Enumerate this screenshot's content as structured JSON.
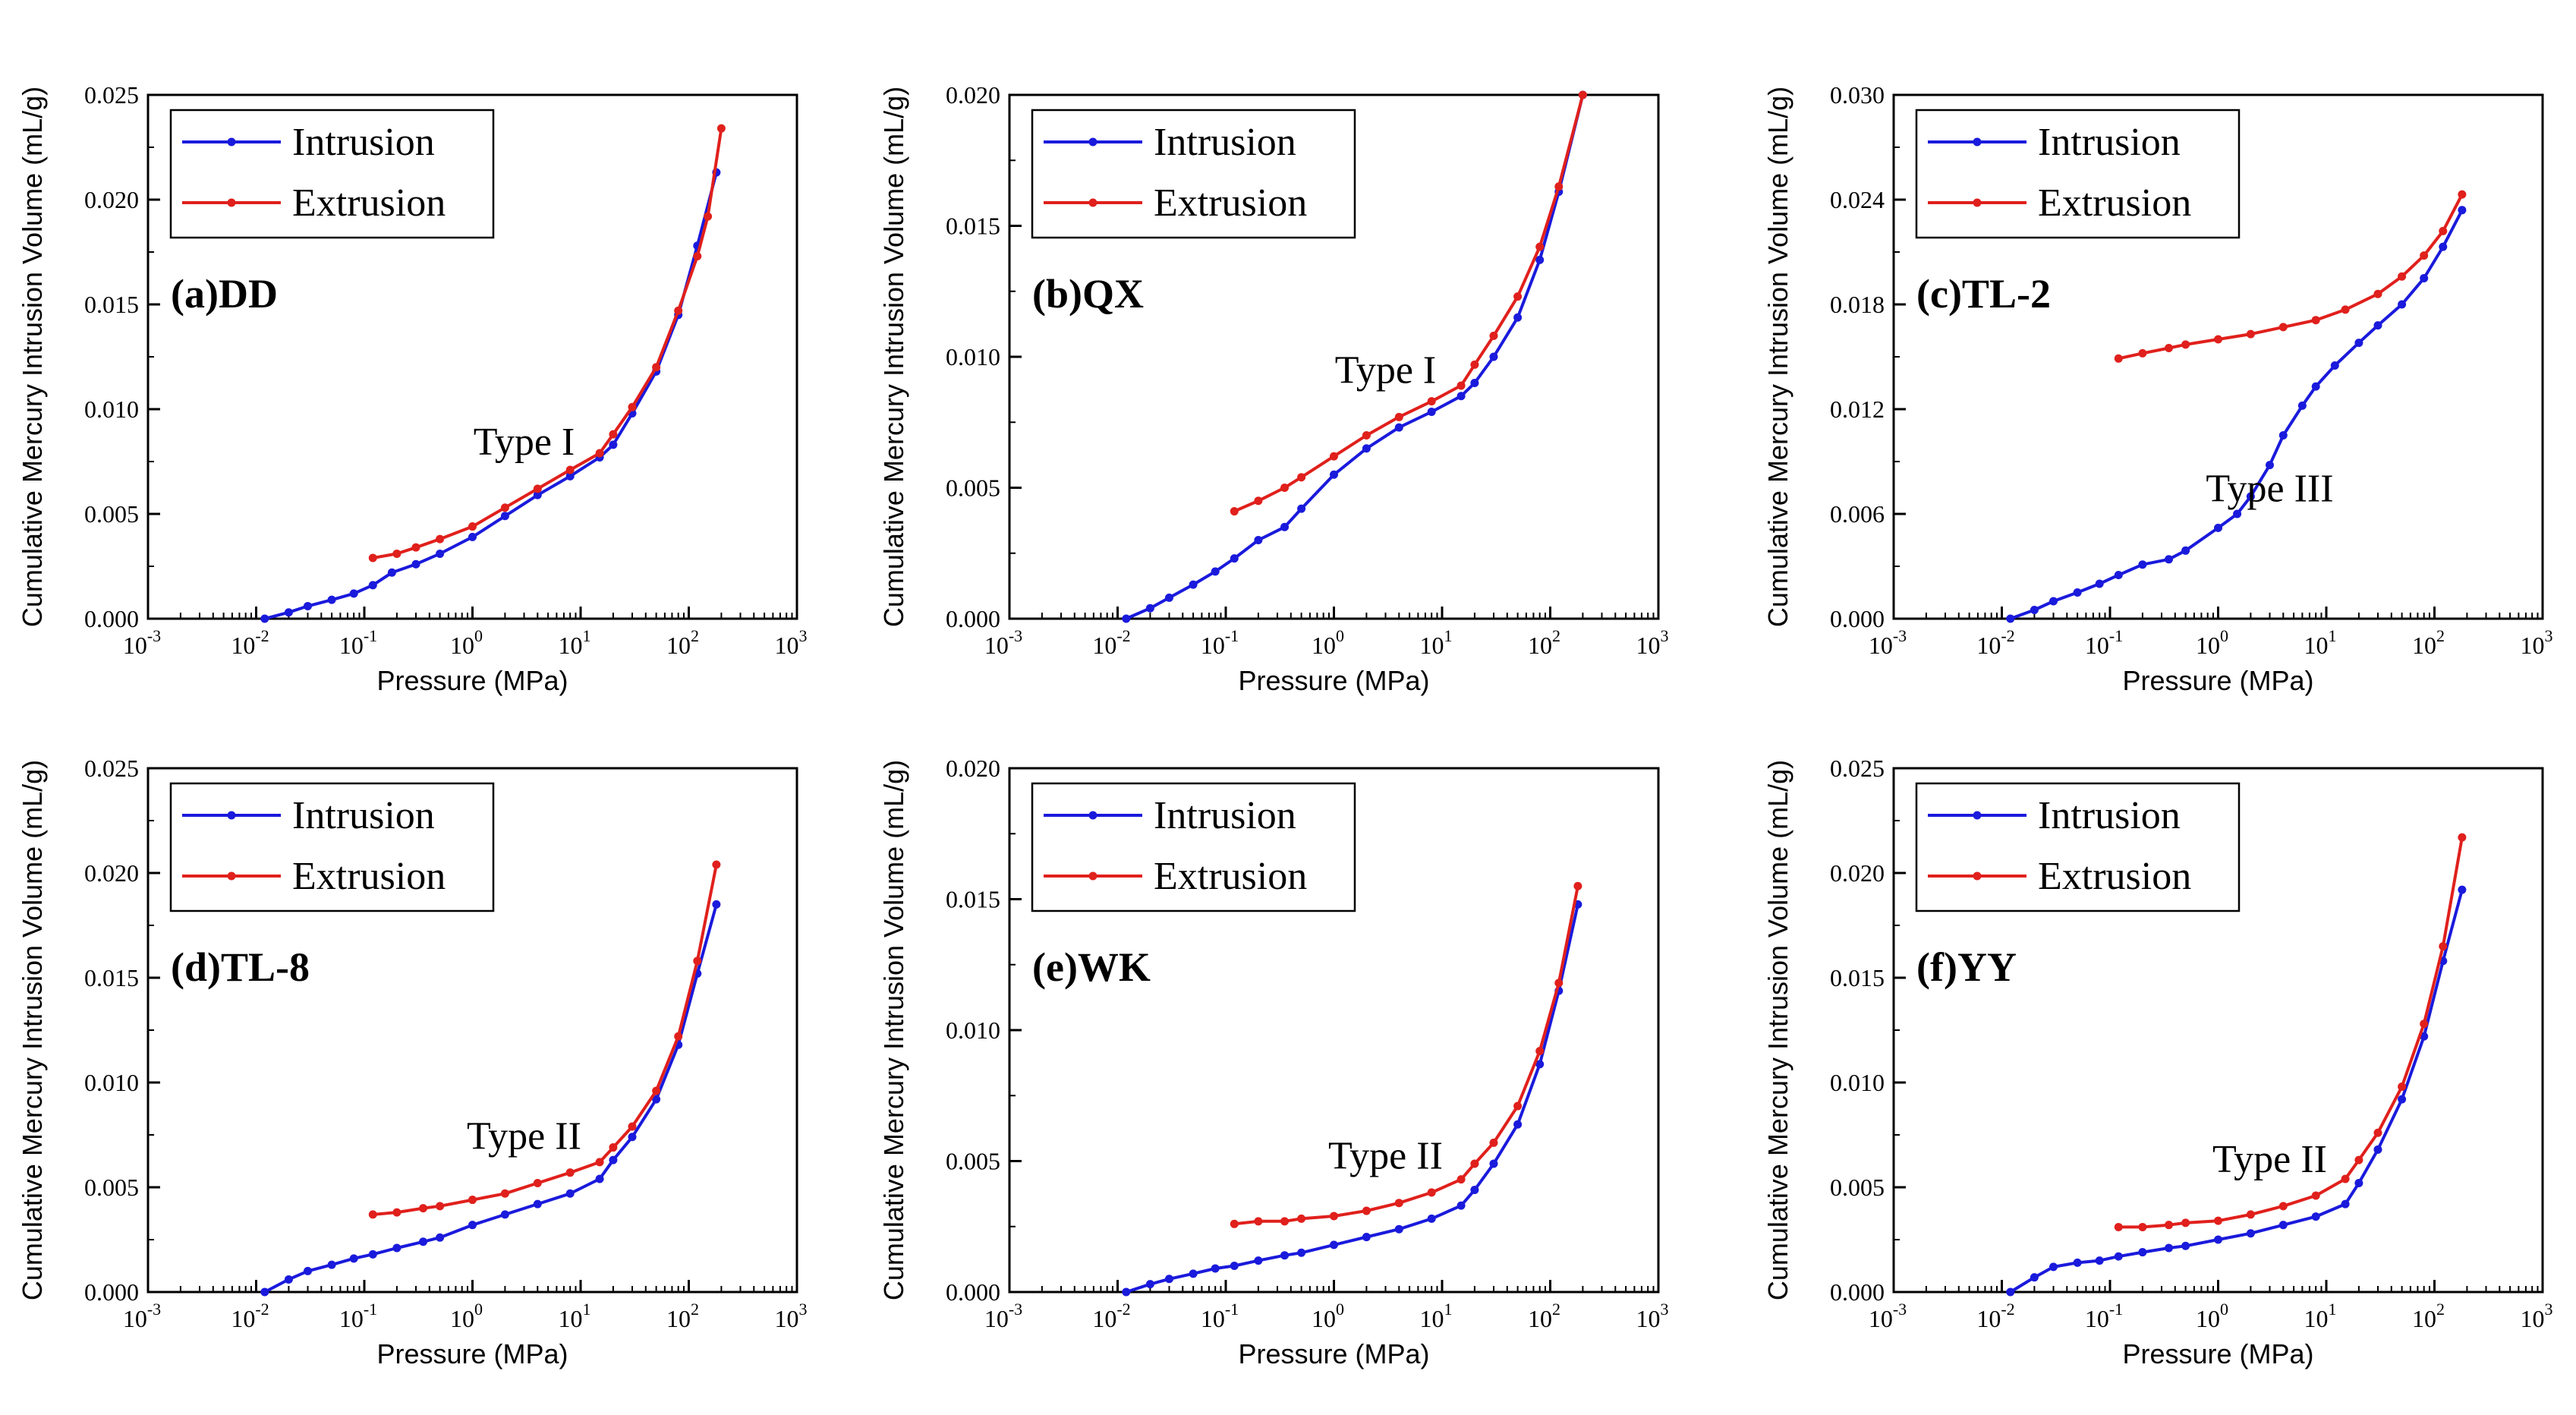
{
  "figure": {
    "xlabel": "Pressure (MPa)",
    "ylabel": "Cumulative Mercury Intrusion Volume (mL/g)",
    "legend": [
      "Intrusion",
      "Extrusion"
    ],
    "colors": {
      "intrusion": "#1a1adc",
      "extrusion": "#e0201c",
      "axis": "#000000"
    }
  },
  "chart_data": [
    {
      "type": "line",
      "title": "(a)DD",
      "annotation": "Type I",
      "xlabel": "Pressure (MPa)",
      "ylabel": "Cumulative Mercury Intrusion Volume (mL/g)",
      "xscale": "log",
      "xlim": [
        0.001,
        1000
      ],
      "ylim": [
        0,
        0.025
      ],
      "yticks": [
        0,
        0.005,
        0.01,
        0.015,
        0.02,
        0.025
      ],
      "ytick_labels": [
        "0.000",
        "0.005",
        "0.010",
        "0.015",
        "0.020",
        "0.025"
      ],
      "xticks": [
        -3,
        -2,
        -1,
        0,
        1,
        2,
        3
      ],
      "series": [
        {
          "name": "Intrusion",
          "x": [
            0.012,
            0.02,
            0.03,
            0.05,
            0.08,
            0.12,
            0.18,
            0.3,
            0.5,
            1,
            2,
            4,
            8,
            15,
            20,
            30,
            50,
            80,
            120,
            180
          ],
          "y": [
            0.0,
            0.0003,
            0.0006,
            0.0009,
            0.0012,
            0.0016,
            0.0022,
            0.0026,
            0.0031,
            0.0039,
            0.0049,
            0.0059,
            0.0068,
            0.0077,
            0.0083,
            0.0098,
            0.0118,
            0.0145,
            0.0178,
            0.0213
          ]
        },
        {
          "name": "Extrusion",
          "x": [
            0.12,
            0.2,
            0.3,
            0.5,
            1,
            2,
            4,
            8,
            15,
            20,
            30,
            50,
            80,
            120,
            150,
            200
          ],
          "y": [
            0.0029,
            0.0031,
            0.0034,
            0.0038,
            0.0044,
            0.0053,
            0.0062,
            0.0071,
            0.0079,
            0.0088,
            0.0101,
            0.012,
            0.0147,
            0.0173,
            0.0192,
            0.0234
          ]
        }
      ]
    },
    {
      "type": "line",
      "title": "(b)QX",
      "annotation": "Type I",
      "xlabel": "Pressure (MPa)",
      "ylabel": "Cumulative Mercury Intrusion Volume (mL/g)",
      "xscale": "log",
      "xlim": [
        0.001,
        1000
      ],
      "ylim": [
        0,
        0.02
      ],
      "yticks": [
        0,
        0.005,
        0.01,
        0.015,
        0.02
      ],
      "ytick_labels": [
        "0.000",
        "0.005",
        "0.010",
        "0.015",
        "0.020"
      ],
      "xticks": [
        -3,
        -2,
        -1,
        0,
        1,
        2,
        3
      ],
      "series": [
        {
          "name": "Intrusion",
          "x": [
            0.012,
            0.02,
            0.03,
            0.05,
            0.08,
            0.12,
            0.2,
            0.35,
            0.5,
            1,
            2,
            4,
            8,
            15,
            20,
            30,
            50,
            80,
            120,
            200
          ],
          "y": [
            0.0,
            0.0004,
            0.0008,
            0.0013,
            0.0018,
            0.0023,
            0.003,
            0.0035,
            0.0042,
            0.0055,
            0.0065,
            0.0073,
            0.0079,
            0.0085,
            0.009,
            0.01,
            0.0115,
            0.0137,
            0.0163,
            0.02
          ]
        },
        {
          "name": "Extrusion",
          "x": [
            0.12,
            0.2,
            0.35,
            0.5,
            1,
            2,
            4,
            8,
            15,
            20,
            30,
            50,
            80,
            120,
            200
          ],
          "y": [
            0.0041,
            0.0045,
            0.005,
            0.0054,
            0.0062,
            0.007,
            0.0077,
            0.0083,
            0.0089,
            0.0097,
            0.0108,
            0.0123,
            0.0142,
            0.0165,
            0.02
          ]
        }
      ]
    },
    {
      "type": "line",
      "title": "(c)TL-2",
      "annotation": "Type III",
      "xlabel": "Pressure (MPa)",
      "ylabel": "Cumulative Mercury Intrusion Volume (mL/g)",
      "xscale": "log",
      "xlim": [
        0.001,
        1000
      ],
      "ylim": [
        0,
        0.03
      ],
      "yticks": [
        0,
        0.006,
        0.012,
        0.018,
        0.024,
        0.03
      ],
      "ytick_labels": [
        "0.000",
        "0.006",
        "0.012",
        "0.018",
        "0.024",
        "0.030"
      ],
      "xticks": [
        -3,
        -2,
        -1,
        0,
        1,
        2,
        3
      ],
      "series": [
        {
          "name": "Intrusion",
          "x": [
            0.012,
            0.02,
            0.03,
            0.05,
            0.08,
            0.12,
            0.2,
            0.35,
            0.5,
            1,
            1.5,
            2,
            3,
            4,
            6,
            8,
            12,
            20,
            30,
            50,
            80,
            120,
            180
          ],
          "y": [
            0.0,
            0.0005,
            0.001,
            0.0015,
            0.002,
            0.0025,
            0.0031,
            0.0034,
            0.0039,
            0.0052,
            0.006,
            0.007,
            0.0088,
            0.0105,
            0.0122,
            0.0133,
            0.0145,
            0.0158,
            0.0168,
            0.018,
            0.0195,
            0.0213,
            0.0234
          ]
        },
        {
          "name": "Extrusion",
          "x": [
            0.12,
            0.2,
            0.35,
            0.5,
            1,
            2,
            4,
            8,
            15,
            30,
            50,
            80,
            120,
            180
          ],
          "y": [
            0.0149,
            0.0152,
            0.0155,
            0.0157,
            0.016,
            0.0163,
            0.0167,
            0.0171,
            0.0177,
            0.0186,
            0.0196,
            0.0208,
            0.0222,
            0.0243
          ]
        }
      ]
    },
    {
      "type": "line",
      "title": "(d)TL-8",
      "annotation": "Type II",
      "xlabel": "Pressure (MPa)",
      "ylabel": "Cumulative Mercury Intrusion Volume (mL/g)",
      "xscale": "log",
      "xlim": [
        0.001,
        1000
      ],
      "ylim": [
        0,
        0.025
      ],
      "yticks": [
        0,
        0.005,
        0.01,
        0.015,
        0.02,
        0.025
      ],
      "ytick_labels": [
        "0.000",
        "0.005",
        "0.010",
        "0.015",
        "0.020",
        "0.025"
      ],
      "xticks": [
        -3,
        -2,
        -1,
        0,
        1,
        2,
        3
      ],
      "series": [
        {
          "name": "Intrusion",
          "x": [
            0.012,
            0.02,
            0.03,
            0.05,
            0.08,
            0.12,
            0.2,
            0.35,
            0.5,
            1,
            2,
            4,
            8,
            15,
            20,
            30,
            50,
            80,
            120,
            180
          ],
          "y": [
            0.0,
            0.0006,
            0.001,
            0.0013,
            0.0016,
            0.0018,
            0.0021,
            0.0024,
            0.0026,
            0.0032,
            0.0037,
            0.0042,
            0.0047,
            0.0054,
            0.0063,
            0.0074,
            0.0092,
            0.0118,
            0.0152,
            0.0185
          ]
        },
        {
          "name": "Extrusion",
          "x": [
            0.12,
            0.2,
            0.35,
            0.5,
            1,
            2,
            4,
            8,
            15,
            20,
            30,
            50,
            80,
            120,
            180
          ],
          "y": [
            0.0037,
            0.0038,
            0.004,
            0.0041,
            0.0044,
            0.0047,
            0.0052,
            0.0057,
            0.0062,
            0.0069,
            0.0079,
            0.0096,
            0.0122,
            0.0158,
            0.0204
          ]
        }
      ]
    },
    {
      "type": "line",
      "title": "(e)WK",
      "annotation": "Type II",
      "xlabel": "Pressure (MPa)",
      "ylabel": "Cumulative Mercury Intrusion Volume (mL/g)",
      "xscale": "log",
      "xlim": [
        0.001,
        1000
      ],
      "ylim": [
        0,
        0.02
      ],
      "yticks": [
        0,
        0.005,
        0.01,
        0.015,
        0.02
      ],
      "ytick_labels": [
        "0.000",
        "0.005",
        "0.010",
        "0.015",
        "0.020"
      ],
      "xticks": [
        -3,
        -2,
        -1,
        0,
        1,
        2,
        3
      ],
      "series": [
        {
          "name": "Intrusion",
          "x": [
            0.012,
            0.02,
            0.03,
            0.05,
            0.08,
            0.12,
            0.2,
            0.35,
            0.5,
            1,
            2,
            4,
            8,
            15,
            20,
            30,
            50,
            80,
            120,
            180
          ],
          "y": [
            0.0,
            0.0003,
            0.0005,
            0.0007,
            0.0009,
            0.001,
            0.0012,
            0.0014,
            0.0015,
            0.0018,
            0.0021,
            0.0024,
            0.0028,
            0.0033,
            0.0039,
            0.0049,
            0.0064,
            0.0087,
            0.0115,
            0.0148
          ]
        },
        {
          "name": "Extrusion",
          "x": [
            0.12,
            0.2,
            0.35,
            0.5,
            1,
            2,
            4,
            8,
            15,
            20,
            30,
            50,
            80,
            120,
            180
          ],
          "y": [
            0.0026,
            0.0027,
            0.0027,
            0.0028,
            0.0029,
            0.0031,
            0.0034,
            0.0038,
            0.0043,
            0.0049,
            0.0057,
            0.0071,
            0.0092,
            0.0118,
            0.0155
          ]
        }
      ]
    },
    {
      "type": "line",
      "title": "(f)YY",
      "annotation": "Type II",
      "xlabel": "Pressure (MPa)",
      "ylabel": "Cumulative Mercury Intrusion Volume (mL/g)",
      "xscale": "log",
      "xlim": [
        0.001,
        1000
      ],
      "ylim": [
        0,
        0.025
      ],
      "yticks": [
        0,
        0.005,
        0.01,
        0.015,
        0.02,
        0.025
      ],
      "ytick_labels": [
        "0.000",
        "0.005",
        "0.010",
        "0.015",
        "0.020",
        "0.025"
      ],
      "xticks": [
        -3,
        -2,
        -1,
        0,
        1,
        2,
        3
      ],
      "series": [
        {
          "name": "Intrusion",
          "x": [
            0.012,
            0.02,
            0.03,
            0.05,
            0.08,
            0.12,
            0.2,
            0.35,
            0.5,
            1,
            2,
            4,
            8,
            15,
            20,
            30,
            50,
            80,
            120,
            180
          ],
          "y": [
            0.0,
            0.0007,
            0.0012,
            0.0014,
            0.0015,
            0.0017,
            0.0019,
            0.0021,
            0.0022,
            0.0025,
            0.0028,
            0.0032,
            0.0036,
            0.0042,
            0.0052,
            0.0068,
            0.0092,
            0.0122,
            0.0158,
            0.0192
          ]
        },
        {
          "name": "Extrusion",
          "x": [
            0.12,
            0.2,
            0.35,
            0.5,
            1,
            2,
            4,
            8,
            15,
            20,
            30,
            50,
            80,
            120,
            180
          ],
          "y": [
            0.0031,
            0.0031,
            0.0032,
            0.0033,
            0.0034,
            0.0037,
            0.0041,
            0.0046,
            0.0054,
            0.0063,
            0.0076,
            0.0098,
            0.0128,
            0.0165,
            0.0217
          ]
        }
      ]
    }
  ]
}
